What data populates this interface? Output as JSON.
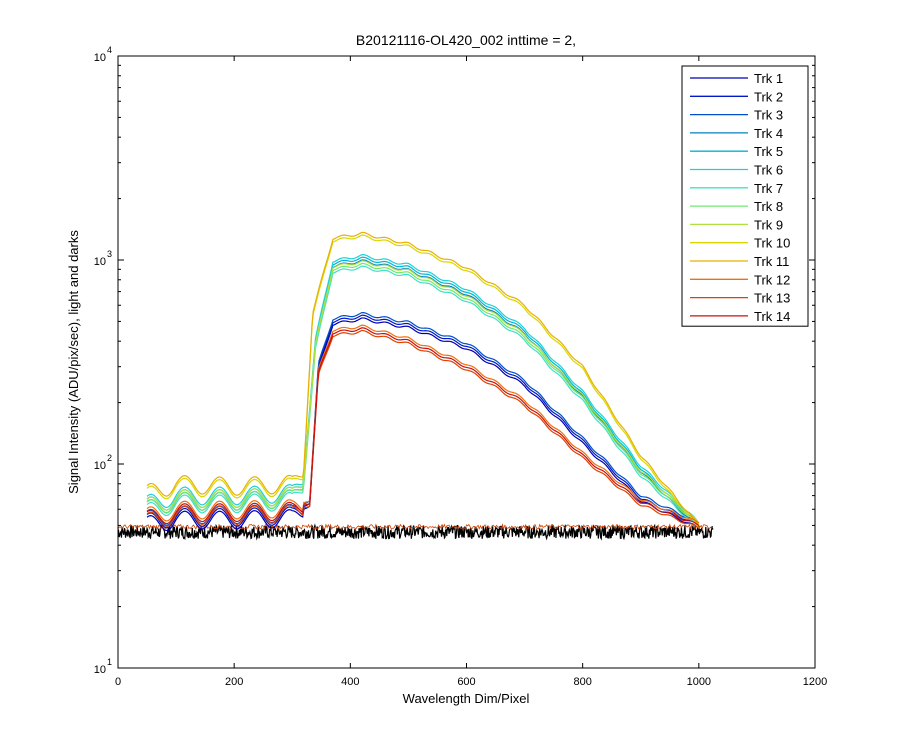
{
  "chart_data": {
    "type": "line",
    "title": "B20121116-OL420_002 inttime = 2,",
    "xlabel": "Wavelength Dim/Pixel",
    "ylabel": "Signal Intensity (ADU/pix/sec), light and darks",
    "xlim": [
      0,
      1200
    ],
    "ylim": [
      10,
      10000
    ],
    "yscale": "log",
    "grid": false,
    "legend_position": "top-right",
    "x_ticks": [
      "0",
      "200",
      "400",
      "600",
      "800",
      "1000",
      "1200"
    ],
    "y_ticks": [
      {
        "base": "10",
        "exp": "1",
        "value": 10
      },
      {
        "base": "10",
        "exp": "2",
        "value": 100
      },
      {
        "base": "10",
        "exp": "3",
        "value": 1000
      },
      {
        "base": "10",
        "exp": "4",
        "value": 10000
      }
    ],
    "series": [
      {
        "name": "Trk 1",
        "color": "#0000b0",
        "group": "low_blue"
      },
      {
        "name": "Trk 2",
        "color": "#0018c8",
        "group": "low_blue"
      },
      {
        "name": "Trk 3",
        "color": "#0050c8",
        "group": "low_blue"
      },
      {
        "name": "Trk 4",
        "color": "#0080c0",
        "group": "mid_cyan"
      },
      {
        "name": "Trk 5",
        "color": "#00b4d8",
        "group": "mid_cyan"
      },
      {
        "name": "Trk 6",
        "color": "#20d0d8",
        "group": "mid_cyan"
      },
      {
        "name": "Trk 7",
        "color": "#40e0c8",
        "group": "mid_green"
      },
      {
        "name": "Trk 8",
        "color": "#70e870",
        "group": "mid_green"
      },
      {
        "name": "Trk 9",
        "color": "#b0e040",
        "group": "mid_green"
      },
      {
        "name": "Trk 10",
        "color": "#d8d800",
        "group": "high_yellow"
      },
      {
        "name": "Trk 11",
        "color": "#e8b000",
        "group": "high_yellow"
      },
      {
        "name": "Trk 12",
        "color": "#f07010",
        "group": "low_red"
      },
      {
        "name": "Trk 13",
        "color": "#e04000",
        "group": "low_red"
      },
      {
        "name": "Trk 14",
        "color": "#c81010",
        "group": "low_red"
      }
    ],
    "profiles": {
      "low_blue": {
        "x": [
          50,
          100,
          200,
          300,
          330,
          345,
          370,
          420,
          500,
          600,
          700,
          800,
          900,
          1000
        ],
        "y": [
          52,
          55,
          55,
          56,
          65,
          300,
          500,
          530,
          480,
          380,
          250,
          130,
          68,
          50
        ]
      },
      "low_red": {
        "x": [
          50,
          100,
          200,
          300,
          330,
          345,
          370,
          420,
          500,
          600,
          700,
          800,
          900,
          1000
        ],
        "y": [
          54,
          58,
          58,
          59,
          65,
          280,
          440,
          460,
          400,
          300,
          200,
          110,
          65,
          50
        ]
      },
      "mid_cyan": {
        "x": [
          50,
          100,
          200,
          300,
          320,
          340,
          370,
          420,
          500,
          600,
          700,
          800,
          900,
          1000
        ],
        "y": [
          62,
          68,
          68,
          70,
          85,
          400,
          960,
          1020,
          920,
          700,
          450,
          220,
          95,
          50
        ]
      },
      "mid_green": {
        "x": [
          50,
          100,
          200,
          300,
          320,
          340,
          370,
          420,
          500,
          600,
          700,
          800,
          900,
          1000
        ],
        "y": [
          60,
          66,
          66,
          68,
          82,
          380,
          900,
          950,
          860,
          650,
          420,
          210,
          90,
          50
        ]
      },
      "high_yellow": {
        "x": [
          50,
          100,
          200,
          300,
          320,
          335,
          370,
          420,
          500,
          600,
          700,
          800,
          900,
          1000
        ],
        "y": [
          72,
          80,
          78,
          80,
          95,
          550,
          1280,
          1350,
          1200,
          920,
          600,
          300,
          110,
          50
        ]
      }
    },
    "dark_band": {
      "x": [
        0,
        1024
      ],
      "y": [
        43,
        50
      ],
      "color": "#000000"
    }
  }
}
